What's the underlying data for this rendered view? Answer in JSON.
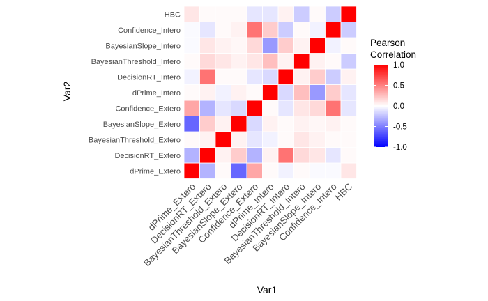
{
  "chart_data": {
    "type": "heatmap",
    "xlabel": "Var1",
    "ylabel": "Var2",
    "variables": [
      "dPrime_Extero",
      "DecisionRT_Extero",
      "BayesianThreshold_Extero",
      "BayesianSlope_Extero",
      "Confidence_Extero",
      "dPrime_Intero",
      "DecisionRT_Intero",
      "BayesianThreshold_Intero",
      "BayesianSlope_Intero",
      "Confidence_Intero",
      "HBC"
    ],
    "matrix": [
      [
        1.0,
        -0.3,
        0.02,
        -0.6,
        0.35,
        0.02,
        -0.05,
        0.02,
        -0.02,
        -0.02,
        0.1
      ],
      [
        -0.3,
        1.0,
        0.05,
        0.2,
        -0.3,
        0.05,
        0.55,
        0.15,
        0.1,
        -0.1,
        0.02
      ],
      [
        0.02,
        0.05,
        1.0,
        0.05,
        -0.1,
        -0.05,
        0.02,
        0.1,
        0.05,
        0.02,
        0.02
      ],
      [
        -0.6,
        0.2,
        0.05,
        1.0,
        -0.15,
        0.05,
        0.02,
        0.05,
        0.03,
        0.05,
        0.02
      ],
      [
        0.35,
        -0.3,
        -0.1,
        -0.15,
        1.0,
        0.02,
        -0.1,
        0.1,
        0.15,
        0.55,
        -0.1
      ],
      [
        0.02,
        0.05,
        -0.05,
        0.05,
        0.02,
        1.0,
        -0.15,
        0.25,
        -0.4,
        0.2,
        -0.1
      ],
      [
        -0.05,
        0.55,
        0.02,
        0.02,
        -0.1,
        -0.15,
        1.0,
        0.05,
        0.2,
        -0.2,
        0.05
      ],
      [
        0.02,
        0.15,
        0.1,
        0.05,
        0.1,
        0.25,
        0.05,
        1.0,
        0.05,
        0.02,
        -0.2
      ],
      [
        -0.02,
        0.1,
        0.05,
        0.03,
        0.15,
        -0.4,
        0.2,
        0.05,
        1.0,
        -0.05,
        0.02
      ],
      [
        -0.02,
        -0.1,
        0.02,
        0.05,
        0.55,
        0.2,
        -0.2,
        0.02,
        -0.05,
        1.0,
        -0.2
      ],
      [
        0.1,
        0.02,
        0.02,
        0.02,
        -0.1,
        -0.1,
        0.05,
        -0.2,
        0.02,
        -0.2,
        1.0
      ]
    ],
    "legend": {
      "title_line1": "Pearson",
      "title_line2": "Correlation",
      "ticks": [
        "1.0",
        "0.5",
        "0.0",
        "-0.5",
        "-1.0"
      ],
      "tick_values": [
        1.0,
        0.5,
        0.0,
        -0.5,
        -1.0
      ],
      "placement": "right"
    },
    "colors": {
      "low": "#0000ff",
      "mid": "#ffffff",
      "high": "#ff0000"
    },
    "range": [
      -1,
      1
    ],
    "grid": false
  }
}
